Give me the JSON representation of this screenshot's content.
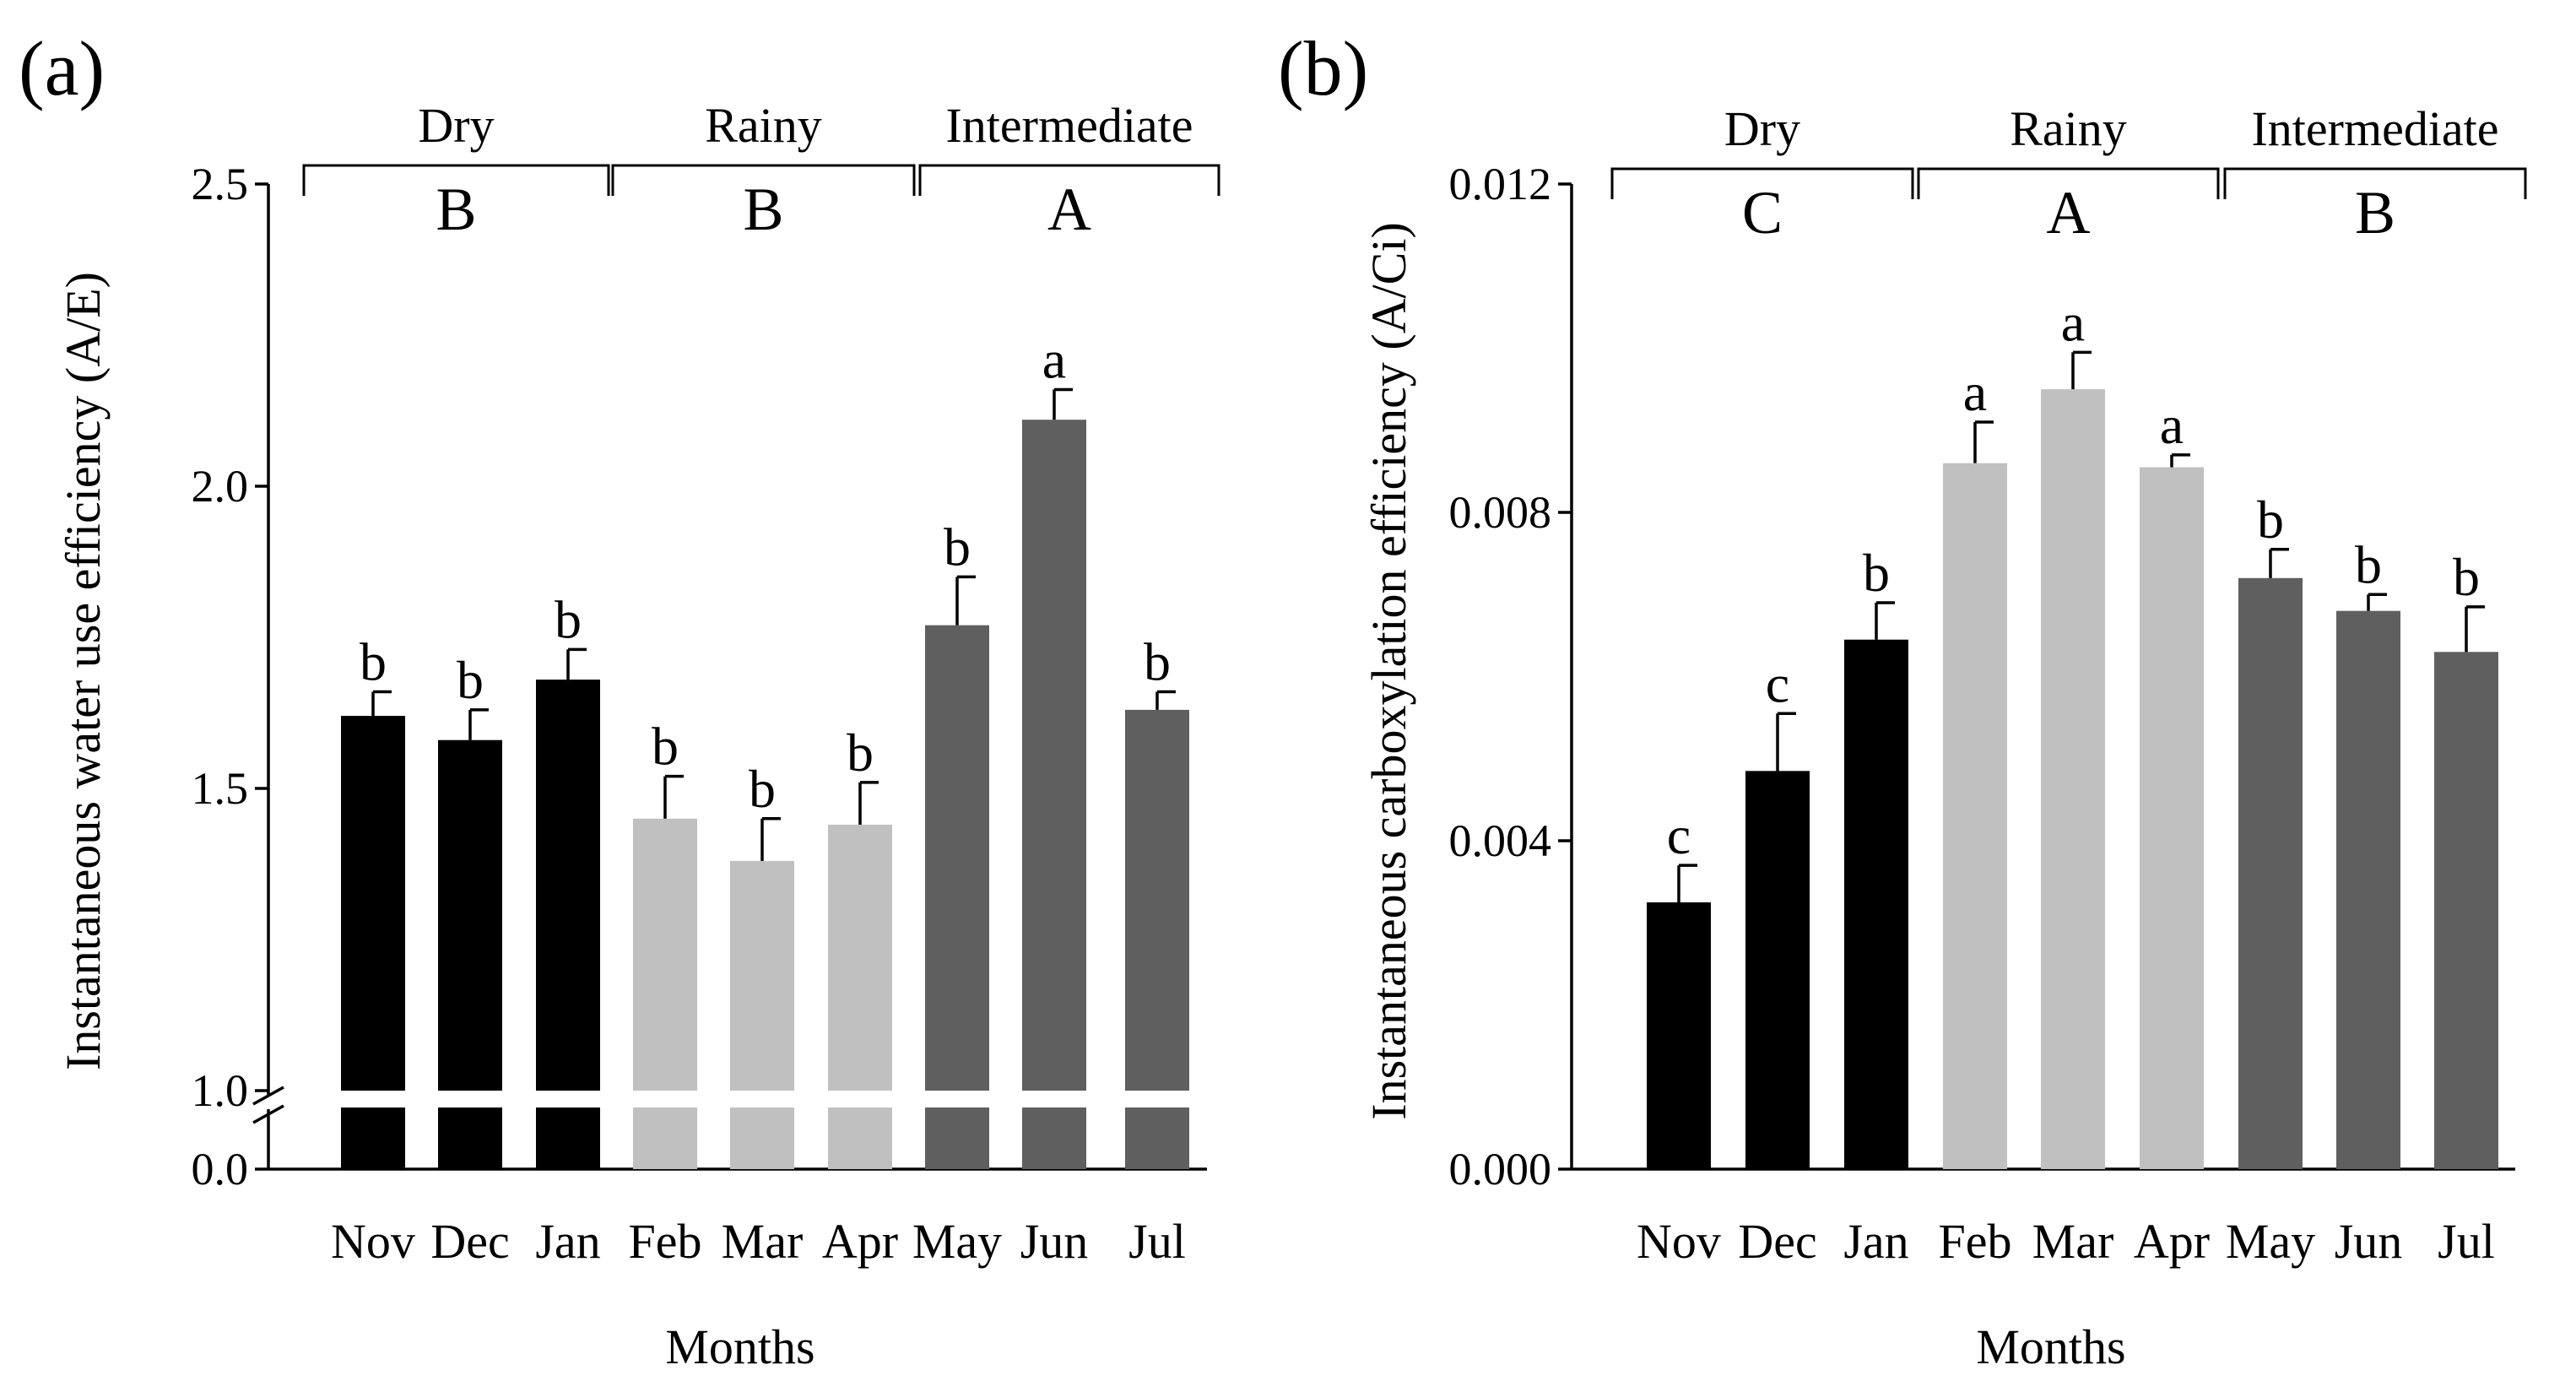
{
  "colors": {
    "dry": "#000000",
    "rainy": "#c0c0c0",
    "intermediate": "#5f5f5f",
    "axis": "#000000"
  },
  "chart_data": [
    {
      "type": "bar",
      "panel_label": "(a)",
      "categories": [
        "Nov",
        "Dec",
        "Jan",
        "Feb",
        "Mar",
        "Apr",
        "May",
        "Jun",
        "Jul"
      ],
      "values": [
        1.62,
        1.58,
        1.68,
        1.45,
        1.38,
        1.44,
        1.77,
        2.11,
        1.63
      ],
      "errors": [
        0.04,
        0.05,
        0.05,
        0.07,
        0.07,
        0.07,
        0.08,
        0.05,
        0.03
      ],
      "significance": [
        "b",
        "b",
        "b",
        "b",
        "b",
        "b",
        "b",
        "a",
        "b"
      ],
      "seasons": [
        {
          "name": "Dry",
          "letter": "B",
          "months": [
            "Nov",
            "Dec",
            "Jan"
          ]
        },
        {
          "name": "Rainy",
          "letter": "B",
          "months": [
            "Feb",
            "Mar",
            "Apr"
          ]
        },
        {
          "name": "Intermediate",
          "letter": "A",
          "months": [
            "May",
            "Jun",
            "Jul"
          ]
        }
      ],
      "xlabel": "Months",
      "ylabel": "Instantaneous water use efficiency (A/E)",
      "yticks": [
        "0.0",
        "1.0",
        "1.5",
        "2.0",
        "2.5"
      ],
      "ylim": [
        1.0,
        2.5
      ],
      "axis_break": "0.0 to 1.0"
    },
    {
      "type": "bar",
      "panel_label": "(b)",
      "categories": [
        "Nov",
        "Dec",
        "Jan",
        "Feb",
        "Mar",
        "Apr",
        "May",
        "Jun",
        "Jul"
      ],
      "values": [
        0.00325,
        0.00485,
        0.00645,
        0.0086,
        0.0095,
        0.00855,
        0.0072,
        0.0068,
        0.0063
      ],
      "errors": [
        0.00045,
        0.0007,
        0.00045,
        0.0005,
        0.00045,
        0.00015,
        0.00035,
        0.0002,
        0.00055
      ],
      "significance": [
        "c",
        "c",
        "b",
        "a",
        "a",
        "a",
        "b",
        "b",
        "b"
      ],
      "seasons": [
        {
          "name": "Dry",
          "letter": "C",
          "months": [
            "Nov",
            "Dec",
            "Jan"
          ]
        },
        {
          "name": "Rainy",
          "letter": "A",
          "months": [
            "Feb",
            "Mar",
            "Apr"
          ]
        },
        {
          "name": "Intermediate",
          "letter": "B",
          "months": [
            "May",
            "Jun",
            "Jul"
          ]
        }
      ],
      "xlabel": "Months",
      "ylabel": "Instantaneous carboxylation efficiency (A/Ci)",
      "yticks": [
        "0.000",
        "0.004",
        "0.008",
        "0.012"
      ],
      "ylim": [
        0,
        0.012
      ]
    }
  ]
}
